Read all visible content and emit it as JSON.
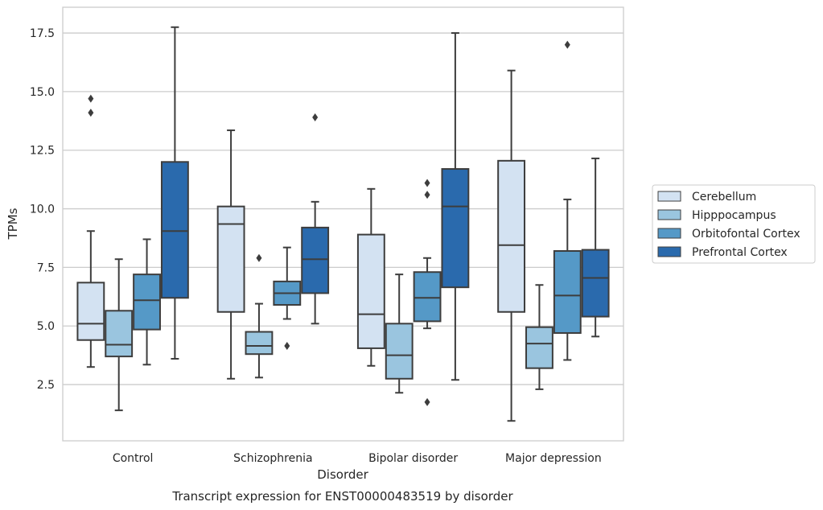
{
  "chart_data": {
    "type": "boxplot",
    "title": "Transcript expression for ENST00000483519 by disorder",
    "xlabel": "Disorder",
    "ylabel": "TPMs",
    "ylim": [
      0.1,
      18.6
    ],
    "yticks": [
      2.5,
      5.0,
      7.5,
      10.0,
      12.5,
      15.0,
      17.5
    ],
    "ytick_labels": [
      "2.5",
      "5.0",
      "7.5",
      "10.0",
      "12.5",
      "15.0",
      "17.5"
    ],
    "grid": true,
    "legend_position": "right",
    "categories": [
      "Control",
      "Schizophrenia",
      "Bipolar disorder",
      "Major depression"
    ],
    "series": [
      {
        "name": "Cerebellum",
        "color": "#d3e2f2",
        "boxes": [
          {
            "whisker_low": 3.25,
            "q1": 4.4,
            "median": 5.1,
            "q3": 6.85,
            "whisker_high": 9.05,
            "outliers": [
              14.1,
              14.7
            ]
          },
          {
            "whisker_low": 2.75,
            "q1": 5.6,
            "median": 9.35,
            "q3": 10.1,
            "whisker_high": 13.35,
            "outliers": []
          },
          {
            "whisker_low": 3.3,
            "q1": 4.05,
            "median": 5.5,
            "q3": 8.9,
            "whisker_high": 10.85,
            "outliers": []
          },
          {
            "whisker_low": 0.95,
            "q1": 5.6,
            "median": 8.45,
            "q3": 12.05,
            "whisker_high": 15.9,
            "outliers": []
          }
        ]
      },
      {
        "name": "Hipppocampus",
        "color": "#9ac5df",
        "boxes": [
          {
            "whisker_low": 1.4,
            "q1": 3.7,
            "median": 4.2,
            "q3": 5.65,
            "whisker_high": 7.85,
            "outliers": []
          },
          {
            "whisker_low": 2.8,
            "q1": 3.8,
            "median": 4.15,
            "q3": 4.75,
            "whisker_high": 5.95,
            "outliers": [
              7.9
            ]
          },
          {
            "whisker_low": 2.15,
            "q1": 2.75,
            "median": 3.75,
            "q3": 5.1,
            "whisker_high": 7.2,
            "outliers": []
          },
          {
            "whisker_low": 2.3,
            "q1": 3.2,
            "median": 4.25,
            "q3": 4.95,
            "whisker_high": 6.75,
            "outliers": []
          }
        ]
      },
      {
        "name": "Orbitofontal Cortex",
        "color": "#5599c7",
        "boxes": [
          {
            "whisker_low": 3.35,
            "q1": 4.85,
            "median": 6.1,
            "q3": 7.2,
            "whisker_high": 8.7,
            "outliers": []
          },
          {
            "whisker_low": 5.3,
            "q1": 5.9,
            "median": 6.4,
            "q3": 6.9,
            "whisker_high": 8.35,
            "outliers": [
              4.15
            ]
          },
          {
            "whisker_low": 4.9,
            "q1": 5.2,
            "median": 6.2,
            "q3": 7.3,
            "whisker_high": 7.9,
            "outliers": [
              1.75,
              10.6,
              11.1
            ]
          },
          {
            "whisker_low": 3.55,
            "q1": 4.7,
            "median": 6.3,
            "q3": 8.2,
            "whisker_high": 10.4,
            "outliers": [
              17.0
            ]
          }
        ]
      },
      {
        "name": "Prefrontal Cortex",
        "color": "#2a6aad",
        "boxes": [
          {
            "whisker_low": 3.6,
            "q1": 6.2,
            "median": 9.05,
            "q3": 12.0,
            "whisker_high": 17.75,
            "outliers": []
          },
          {
            "whisker_low": 5.1,
            "q1": 6.4,
            "median": 7.85,
            "q3": 9.2,
            "whisker_high": 10.3,
            "outliers": [
              13.9
            ]
          },
          {
            "whisker_low": 2.7,
            "q1": 6.65,
            "median": 10.1,
            "q3": 11.7,
            "whisker_high": 17.5,
            "outliers": []
          },
          {
            "whisker_low": 4.55,
            "q1": 5.4,
            "median": 7.05,
            "q3": 8.25,
            "whisker_high": 12.15,
            "outliers": []
          }
        ]
      }
    ]
  }
}
